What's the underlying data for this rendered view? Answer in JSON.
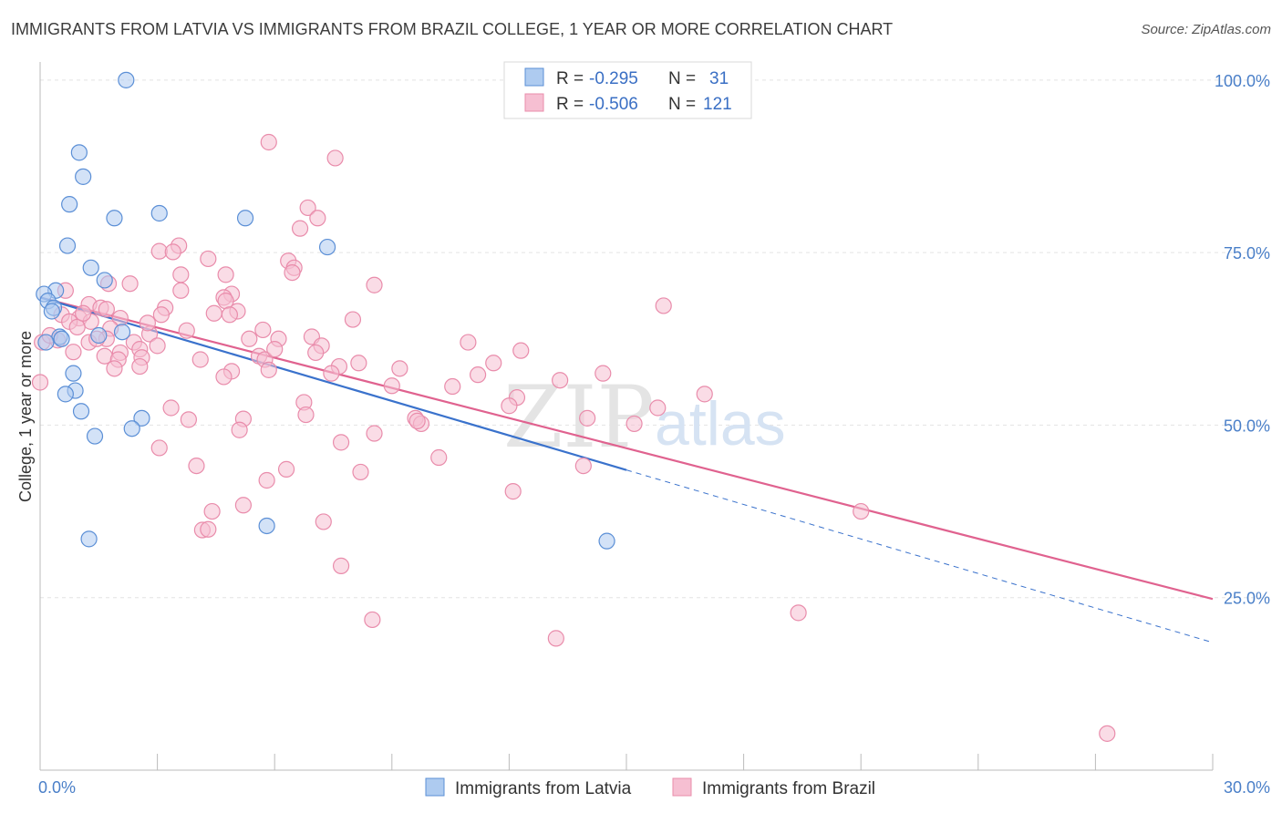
{
  "header": {
    "title": "IMMIGRANTS FROM LATVIA VS IMMIGRANTS FROM BRAZIL COLLEGE, 1 YEAR OR MORE CORRELATION CHART",
    "source": "Source: ZipAtlas.com"
  },
  "watermark": {
    "zip": "ZIP",
    "atlas": "atlas"
  },
  "legend": {
    "r_label": "R =",
    "n_label": "N =",
    "latvia": {
      "r": "-0.295",
      "n": "31"
    },
    "brazil": {
      "r": "-0.506",
      "n": "121"
    }
  },
  "colors": {
    "latvia_fill": "#aecbf0",
    "latvia_stroke": "#5b8fd6",
    "latvia_line": "#3a72cc",
    "brazil_fill": "#f6bfd2",
    "brazil_stroke": "#e98cab",
    "brazil_line": "#e0628f"
  },
  "chart_data": {
    "type": "scatter",
    "xlabel": "",
    "ylabel": "College, 1 year or more",
    "xlim": [
      0,
      30
    ],
    "ylim": [
      0,
      105
    ],
    "x_tick_labels": [
      "0.0%",
      "30.0%"
    ],
    "y_ticks": [
      25,
      50,
      75,
      100
    ],
    "y_tick_labels": [
      "25.0%",
      "50.0%",
      "75.0%",
      "100.0%"
    ],
    "grid": true,
    "legend_position": "top-center",
    "series": [
      {
        "name": "Immigrants from Latvia",
        "points": [
          [
            2.2,
            100
          ],
          [
            1.0,
            89.5
          ],
          [
            1.1,
            86
          ],
          [
            0.75,
            82
          ],
          [
            1.9,
            80
          ],
          [
            3.05,
            80.7
          ],
          [
            5.25,
            80
          ],
          [
            0.7,
            76
          ],
          [
            7.35,
            75.8
          ],
          [
            1.3,
            72.8
          ],
          [
            1.65,
            71
          ],
          [
            0.4,
            69.5
          ],
          [
            0.1,
            69
          ],
          [
            0.2,
            68
          ],
          [
            0.35,
            67
          ],
          [
            0.5,
            62.8
          ],
          [
            0.55,
            62.5
          ],
          [
            1.5,
            63
          ],
          [
            2.1,
            63.5
          ],
          [
            0.85,
            57.5
          ],
          [
            0.9,
            55
          ],
          [
            0.65,
            54.5
          ],
          [
            1.05,
            52
          ],
          [
            2.6,
            51
          ],
          [
            2.35,
            49.5
          ],
          [
            1.4,
            48.4
          ],
          [
            0.15,
            62
          ],
          [
            1.25,
            33.5
          ],
          [
            5.8,
            35.4
          ],
          [
            14.5,
            33.2
          ],
          [
            0.3,
            66.5
          ]
        ],
        "trend": {
          "x": [
            0,
            15
          ],
          "y": [
            68.5,
            43.5
          ]
        },
        "trend_extension": {
          "x": [
            15,
            30
          ],
          "y": [
            43.5,
            18.5
          ]
        }
      },
      {
        "name": "Immigrants from Brazil",
        "points": [
          [
            5.85,
            91
          ],
          [
            7.55,
            88.7
          ],
          [
            6.85,
            81.5
          ],
          [
            7.1,
            80
          ],
          [
            6.65,
            78.5
          ],
          [
            3.55,
            76
          ],
          [
            3.05,
            75.2
          ],
          [
            3.4,
            75.1
          ],
          [
            4.3,
            74.1
          ],
          [
            6.35,
            73.8
          ],
          [
            6.5,
            72.8
          ],
          [
            4.75,
            71.8
          ],
          [
            6.45,
            72.1
          ],
          [
            3.6,
            71.8
          ],
          [
            2.3,
            70.5
          ],
          [
            1.75,
            70.5
          ],
          [
            8.55,
            70.3
          ],
          [
            3.6,
            69.5
          ],
          [
            4.9,
            69
          ],
          [
            4.7,
            68.5
          ],
          [
            4.75,
            68
          ],
          [
            1.25,
            67.5
          ],
          [
            0.65,
            69.5
          ],
          [
            1.55,
            67
          ],
          [
            3.2,
            67
          ],
          [
            5.05,
            66.5
          ],
          [
            1.7,
            66.8
          ],
          [
            0.55,
            66
          ],
          [
            1.0,
            65.5
          ],
          [
            3.1,
            66
          ],
          [
            4.85,
            66
          ],
          [
            0.75,
            65
          ],
          [
            2.05,
            65.5
          ],
          [
            1.3,
            65
          ],
          [
            8.0,
            65.3
          ],
          [
            15.95,
            67.3
          ],
          [
            1.8,
            64
          ],
          [
            2.8,
            63.2
          ],
          [
            3.75,
            63.7
          ],
          [
            5.7,
            63.8
          ],
          [
            1.7,
            62.5
          ],
          [
            5.35,
            62.5
          ],
          [
            6.1,
            62.5
          ],
          [
            6.95,
            62.8
          ],
          [
            1.25,
            62
          ],
          [
            2.4,
            62
          ],
          [
            1.45,
            62.5
          ],
          [
            2.55,
            61
          ],
          [
            1.65,
            60
          ],
          [
            2.05,
            60.5
          ],
          [
            2.0,
            59.5
          ],
          [
            5.6,
            60
          ],
          [
            7.2,
            61.5
          ],
          [
            10.95,
            62
          ],
          [
            12.3,
            60.8
          ],
          [
            0.05,
            62
          ],
          [
            4.1,
            59.5
          ],
          [
            2.6,
            59.8
          ],
          [
            5.75,
            59.5
          ],
          [
            1.9,
            58.2
          ],
          [
            2.55,
            58.5
          ],
          [
            5.85,
            58
          ],
          [
            7.65,
            58.5
          ],
          [
            8.15,
            59
          ],
          [
            4.9,
            57.8
          ],
          [
            7.45,
            57.5
          ],
          [
            11.6,
            59
          ],
          [
            11.2,
            57.3
          ],
          [
            14.4,
            57.5
          ],
          [
            4.7,
            57
          ],
          [
            9.0,
            55.7
          ],
          [
            12.2,
            54
          ],
          [
            12.0,
            52.8
          ],
          [
            17.0,
            54.5
          ],
          [
            15.8,
            52.5
          ],
          [
            3.35,
            52.5
          ],
          [
            0,
            56.2
          ],
          [
            6.75,
            53.3
          ],
          [
            6.8,
            51.5
          ],
          [
            14.0,
            51
          ],
          [
            3.8,
            50.8
          ],
          [
            5.2,
            50.9
          ],
          [
            9.6,
            51
          ],
          [
            9.75,
            50.2
          ],
          [
            9.65,
            50.6
          ],
          [
            15.2,
            50.2
          ],
          [
            5.1,
            49.3
          ],
          [
            8.55,
            48.8
          ],
          [
            7.7,
            47.5
          ],
          [
            3.05,
            46.7
          ],
          [
            10.2,
            45.3
          ],
          [
            4.0,
            44.1
          ],
          [
            6.3,
            43.6
          ],
          [
            8.2,
            43.2
          ],
          [
            13.9,
            44.1
          ],
          [
            5.8,
            42
          ],
          [
            12.1,
            40.4
          ],
          [
            4.4,
            37.5
          ],
          [
            5.2,
            38.4
          ],
          [
            7.25,
            36
          ],
          [
            4.15,
            34.8
          ],
          [
            4.3,
            34.9
          ],
          [
            21.0,
            37.5
          ],
          [
            7.7,
            29.6
          ],
          [
            8.5,
            21.8
          ],
          [
            13.2,
            19.1
          ],
          [
            19.4,
            22.8
          ],
          [
            27.3,
            5.3
          ],
          [
            0.45,
            62.3
          ],
          [
            0.25,
            63
          ],
          [
            0.95,
            64.2
          ],
          [
            1.1,
            66.2
          ],
          [
            2.75,
            64.8
          ],
          [
            3.0,
            61.5
          ],
          [
            4.45,
            66.2
          ],
          [
            6.0,
            61
          ],
          [
            7.05,
            60.5
          ],
          [
            9.2,
            58.2
          ],
          [
            10.55,
            55.6
          ],
          [
            13.3,
            56.5
          ],
          [
            0.85,
            60.6
          ]
        ],
        "trend": {
          "x": [
            0,
            30
          ],
          "y": [
            68.5,
            24.8
          ]
        }
      }
    ]
  }
}
